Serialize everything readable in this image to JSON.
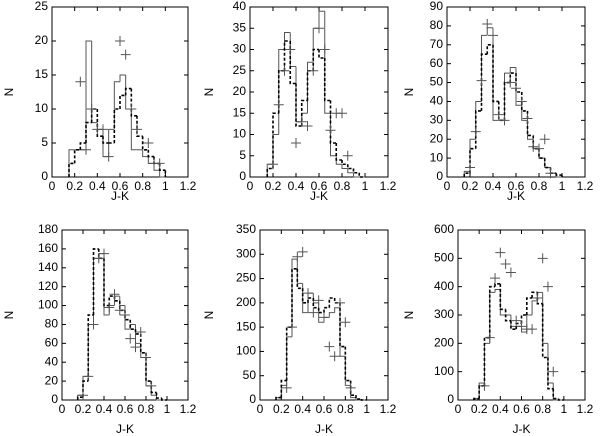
{
  "chart_data": [
    {
      "type": "histogram",
      "xlabel": "J-K",
      "ylabel": "N",
      "xlim": [
        0,
        1.2
      ],
      "xticks": [
        0,
        0.2,
        0.4,
        0.6,
        0.8,
        1,
        1.2
      ],
      "ylim": [
        0,
        25
      ],
      "yticks": [
        0,
        5,
        10,
        15,
        20,
        25
      ],
      "bins": [
        0.15,
        0.2,
        0.25,
        0.3,
        0.35,
        0.4,
        0.45,
        0.5,
        0.55,
        0.6,
        0.65,
        0.7,
        0.75,
        0.8,
        0.85,
        0.9,
        0.95,
        1.0
      ],
      "series": [
        {
          "style": "solid",
          "color": "#555555",
          "values": [
            4,
            4,
            4,
            20,
            8,
            7,
            3,
            7,
            14,
            15,
            10,
            4,
            4,
            3,
            2,
            1,
            0
          ]
        },
        {
          "style": "dotted",
          "color": "#000000",
          "values": [
            2,
            4,
            5,
            8,
            10,
            6,
            5,
            5,
            10,
            12,
            13,
            9,
            6,
            4,
            3,
            2,
            1
          ]
        },
        {
          "style": "scatter",
          "color": "#555555",
          "x": [
            0.25,
            0.3,
            0.35,
            0.4,
            0.45,
            0.5,
            0.6,
            0.65,
            0.7,
            0.75,
            0.85,
            0.9,
            0.95
          ],
          "values": [
            14,
            4,
            10,
            7,
            7,
            3,
            20,
            18,
            10,
            7,
            5,
            2,
            2
          ]
        }
      ]
    },
    {
      "type": "histogram",
      "xlabel": "J-K",
      "ylabel": "N",
      "xlim": [
        0,
        1.2
      ],
      "xticks": [
        0,
        0.2,
        0.4,
        0.6,
        0.8,
        1,
        1.2
      ],
      "ylim": [
        0,
        40
      ],
      "yticks": [
        0,
        5,
        10,
        15,
        20,
        25,
        30,
        35,
        40
      ],
      "bins": [
        0.15,
        0.2,
        0.25,
        0.3,
        0.35,
        0.4,
        0.45,
        0.5,
        0.55,
        0.6,
        0.65,
        0.7,
        0.75,
        0.8,
        0.85,
        0.9,
        0.95,
        1.0
      ],
      "series": [
        {
          "style": "solid",
          "color": "#555555",
          "values": [
            3,
            10,
            30,
            34,
            26,
            13,
            15,
            27,
            35,
            39,
            15,
            5,
            3,
            2,
            1,
            0,
            0
          ]
        },
        {
          "style": "dotted",
          "color": "#000000",
          "values": [
            2,
            15,
            25,
            32,
            22,
            12,
            18,
            25,
            30,
            28,
            18,
            8,
            4,
            3,
            2,
            1,
            0
          ]
        },
        {
          "style": "scatter",
          "color": "#555555",
          "x": [
            0.2,
            0.25,
            0.3,
            0.35,
            0.4,
            0.45,
            0.5,
            0.55,
            0.6,
            0.65,
            0.7,
            0.75,
            0.8,
            0.85
          ],
          "values": [
            3,
            17,
            25,
            30,
            8,
            13,
            12,
            25,
            35,
            30,
            11,
            15,
            15,
            5
          ]
        }
      ]
    },
    {
      "type": "histogram",
      "xlabel": "J-K",
      "ylabel": "N",
      "xlim": [
        0,
        1.2
      ],
      "xticks": [
        0,
        0.2,
        0.4,
        0.6,
        0.8,
        1,
        1.2
      ],
      "ylim": [
        0,
        90
      ],
      "yticks": [
        0,
        10,
        20,
        30,
        40,
        50,
        60,
        70,
        80,
        90
      ],
      "bins": [
        0.15,
        0.2,
        0.25,
        0.3,
        0.35,
        0.4,
        0.45,
        0.5,
        0.55,
        0.6,
        0.65,
        0.7,
        0.75,
        0.8,
        0.85,
        0.9,
        0.95,
        1.0
      ],
      "series": [
        {
          "style": "solid",
          "color": "#555555",
          "values": [
            3,
            20,
            40,
            75,
            79,
            30,
            30,
            55,
            58,
            38,
            30,
            20,
            15,
            10,
            5,
            2,
            0
          ]
        },
        {
          "style": "dotted",
          "color": "#000000",
          "values": [
            2,
            15,
            35,
            65,
            70,
            40,
            30,
            50,
            55,
            45,
            35,
            22,
            15,
            10,
            5,
            2,
            1
          ]
        },
        {
          "style": "scatter",
          "color": "#555555",
          "x": [
            0.2,
            0.25,
            0.3,
            0.35,
            0.4,
            0.45,
            0.5,
            0.55,
            0.6,
            0.65,
            0.7,
            0.75,
            0.8,
            0.85,
            0.9
          ],
          "values": [
            5,
            24,
            51,
            81,
            75,
            33,
            30,
            50,
            47,
            40,
            31,
            16,
            15,
            20,
            2
          ]
        }
      ]
    },
    {
      "type": "histogram",
      "xlabel": "J-K",
      "ylabel": "N",
      "xlim": [
        0,
        1.2
      ],
      "xticks": [
        0,
        0.2,
        0.4,
        0.6,
        0.8,
        1,
        1.2
      ],
      "ylim": [
        0,
        180
      ],
      "yticks": [
        0,
        20,
        40,
        60,
        80,
        100,
        120,
        140,
        160,
        180
      ],
      "bins": [
        0.15,
        0.2,
        0.25,
        0.3,
        0.35,
        0.4,
        0.45,
        0.5,
        0.55,
        0.6,
        0.65,
        0.7,
        0.75,
        0.8,
        0.85,
        0.9,
        0.95,
        1.0
      ],
      "series": [
        {
          "style": "solid",
          "color": "#555555",
          "values": [
            5,
            25,
            80,
            150,
            155,
            90,
            100,
            110,
            100,
            75,
            80,
            60,
            45,
            15,
            5,
            0,
            0
          ]
        },
        {
          "style": "dotted",
          "color": "#000000",
          "values": [
            3,
            20,
            90,
            160,
            150,
            100,
            110,
            105,
            95,
            85,
            75,
            70,
            50,
            20,
            8,
            2,
            0
          ]
        },
        {
          "style": "scatter",
          "color": "#555555",
          "x": [
            0.2,
            0.25,
            0.3,
            0.35,
            0.4,
            0.45,
            0.5,
            0.55,
            0.6,
            0.65,
            0.7,
            0.75,
            0.8,
            0.85
          ],
          "values": [
            5,
            25,
            80,
            150,
            155,
            98,
            112,
            95,
            90,
            65,
            56,
            72,
            45,
            15
          ]
        }
      ]
    },
    {
      "type": "histogram",
      "xlabel": "J-K",
      "ylabel": "N",
      "xlim": [
        0,
        1.2
      ],
      "xticks": [
        0,
        0.2,
        0.4,
        0.6,
        0.8,
        1,
        1.2
      ],
      "ylim": [
        0,
        350
      ],
      "yticks": [
        0,
        50,
        100,
        150,
        200,
        250,
        300,
        350
      ],
      "bins": [
        0.15,
        0.2,
        0.25,
        0.3,
        0.35,
        0.4,
        0.45,
        0.5,
        0.55,
        0.6,
        0.65,
        0.7,
        0.75,
        0.8,
        0.85,
        0.9,
        0.95,
        1.0
      ],
      "series": [
        {
          "style": "solid",
          "color": "#555555",
          "values": [
            5,
            30,
            130,
            290,
            240,
            180,
            220,
            200,
            160,
            170,
            180,
            190,
            90,
            30,
            5,
            0,
            0
          ]
        },
        {
          "style": "dotted",
          "color": "#000000",
          "values": [
            5,
            40,
            150,
            270,
            230,
            200,
            210,
            190,
            180,
            190,
            210,
            200,
            110,
            40,
            10,
            2,
            0
          ]
        },
        {
          "style": "scatter",
          "color": "#555555",
          "x": [
            0.25,
            0.3,
            0.35,
            0.4,
            0.45,
            0.5,
            0.55,
            0.6,
            0.65,
            0.7,
            0.75,
            0.8,
            0.85
          ],
          "values": [
            25,
            150,
            295,
            305,
            220,
            180,
            205,
            170,
            110,
            90,
            200,
            160,
            25
          ]
        }
      ]
    },
    {
      "type": "histogram",
      "xlabel": "J-K",
      "ylabel": "N",
      "xlim": [
        0,
        1.2
      ],
      "xticks": [
        0,
        0.2,
        0.4,
        0.6,
        0.8,
        1,
        1.2
      ],
      "ylim": [
        0,
        600
      ],
      "yticks": [
        0,
        100,
        200,
        300,
        400,
        500,
        600
      ],
      "bins": [
        0.15,
        0.2,
        0.25,
        0.3,
        0.35,
        0.4,
        0.45,
        0.5,
        0.55,
        0.6,
        0.65,
        0.7,
        0.75,
        0.8,
        0.85,
        0.9,
        0.95,
        1.0
      ],
      "series": [
        {
          "style": "solid",
          "color": "#555555",
          "values": [
            5,
            60,
            200,
            380,
            390,
            300,
            300,
            260,
            260,
            240,
            300,
            350,
            380,
            200,
            60,
            0,
            0
          ]
        },
        {
          "style": "dotted",
          "color": "#000000",
          "values": [
            5,
            50,
            220,
            400,
            410,
            320,
            280,
            250,
            270,
            300,
            360,
            380,
            340,
            150,
            40,
            5,
            0
          ]
        },
        {
          "style": "scatter",
          "color": "#555555",
          "x": [
            0.25,
            0.3,
            0.35,
            0.4,
            0.45,
            0.5,
            0.55,
            0.6,
            0.65,
            0.7,
            0.75,
            0.8,
            0.85,
            0.9
          ],
          "values": [
            50,
            220,
            430,
            520,
            480,
            450,
            280,
            260,
            250,
            250,
            360,
            500,
            400,
            100
          ]
        }
      ]
    }
  ]
}
